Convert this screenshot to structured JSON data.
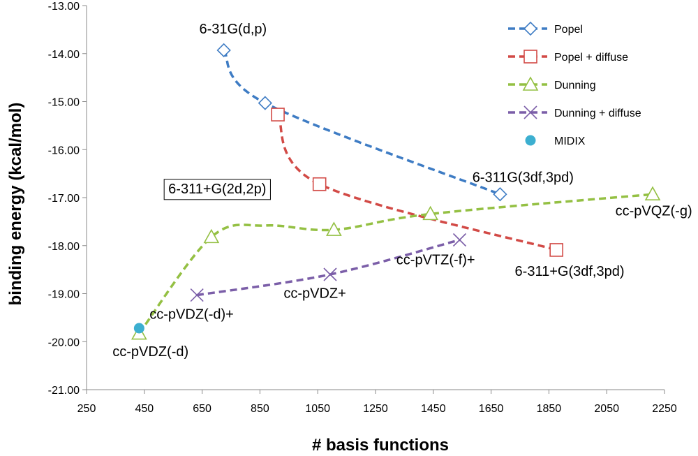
{
  "chart_data": {
    "type": "scatter",
    "xlabel": "# basis functions",
    "ylabel": "binding energy (kcal/mol)",
    "xlim": [
      250,
      2250
    ],
    "ylim": [
      -21.0,
      -13.0
    ],
    "xticks": [
      "250",
      "450",
      "650",
      "850",
      "1050",
      "1250",
      "1450",
      "1650",
      "1850",
      "2050",
      "2250"
    ],
    "yticks": [
      "-13.00",
      "-14.00",
      "-15.00",
      "-16.00",
      "-17.00",
      "-18.00",
      "-19.00",
      "-20.00",
      "-21.00"
    ],
    "grid": false,
    "legend_position": "top-right",
    "series": [
      {
        "name": "Popel",
        "color": "#3e7cc4",
        "marker": "diamond",
        "points": [
          {
            "x": 725,
            "y": -13.93
          },
          {
            "x": 868,
            "y": -15.03
          },
          {
            "x": 1681,
            "y": -16.93
          }
        ],
        "curve": [
          [
            725,
            -13.93
          ],
          [
            868,
            -15.03
          ],
          [
            1681,
            -16.93
          ]
        ]
      },
      {
        "name": "Popel + diffuse",
        "color": "#d24a46",
        "marker": "square",
        "points": [
          {
            "x": 912,
            "y": -15.27
          },
          {
            "x": 1056,
            "y": -16.72
          },
          {
            "x": 1876,
            "y": -18.09
          }
        ],
        "curve": [
          [
            912,
            -15.27
          ],
          [
            1056,
            -16.72
          ],
          [
            1876,
            -18.09
          ]
        ]
      },
      {
        "name": "Dunning",
        "color": "#94c043",
        "marker": "triangle",
        "points": [
          {
            "x": 432,
            "y": -19.83
          },
          {
            "x": 682,
            "y": -17.82
          },
          {
            "x": 1106,
            "y": -17.67
          },
          {
            "x": 1440,
            "y": -17.34
          },
          {
            "x": 2209,
            "y": -16.93
          }
        ],
        "curve": [
          [
            432,
            -19.83
          ],
          [
            682,
            -17.82
          ],
          [
            870,
            -17.58
          ],
          [
            1106,
            -17.67
          ],
          [
            1440,
            -17.34
          ],
          [
            2209,
            -16.93
          ]
        ]
      },
      {
        "name": "Dunning + diffuse",
        "color": "#7b5ea8",
        "marker": "x",
        "points": [
          {
            "x": 632,
            "y": -19.03
          },
          {
            "x": 1093,
            "y": -18.6
          },
          {
            "x": 1541,
            "y": -17.88
          }
        ],
        "curve": [
          [
            632,
            -19.03
          ],
          [
            1093,
            -18.6
          ],
          [
            1541,
            -17.88
          ]
        ]
      },
      {
        "name": "MIDIX",
        "color": "#3cafd0",
        "marker": "circle",
        "points": [
          {
            "x": 432,
            "y": -19.72
          }
        ],
        "curve": []
      }
    ],
    "annotations": [
      {
        "text": "6-31G(d,p)",
        "x": 640,
        "y": -13.58,
        "anchor": "start",
        "boxed": false
      },
      {
        "text": "6-311+G(2d,2p)",
        "x": 533,
        "y": -16.91,
        "anchor": "start",
        "boxed": true
      },
      {
        "text": "6-311G(3df,3pd)",
        "x": 1585,
        "y": -16.67,
        "anchor": "start",
        "boxed": false
      },
      {
        "text": "cc-pVQZ(-g)",
        "x": 2080,
        "y": -17.37,
        "anchor": "start",
        "boxed": false
      },
      {
        "text": "cc-pVTZ(-f)+",
        "x": 1322,
        "y": -18.39,
        "anchor": "start",
        "boxed": false
      },
      {
        "text": "6-311+G(3df,3pd)",
        "x": 1732,
        "y": -18.63,
        "anchor": "start",
        "boxed": false
      },
      {
        "text": "cc-pVDZ+",
        "x": 932,
        "y": -19.09,
        "anchor": "start",
        "boxed": false
      },
      {
        "text": "cc-pVDZ(-d)+",
        "x": 468,
        "y": -19.52,
        "anchor": "start",
        "boxed": false
      },
      {
        "text": "cc-pVDZ(-d)",
        "x": 340,
        "y": -20.3,
        "anchor": "start",
        "boxed": false
      }
    ]
  }
}
